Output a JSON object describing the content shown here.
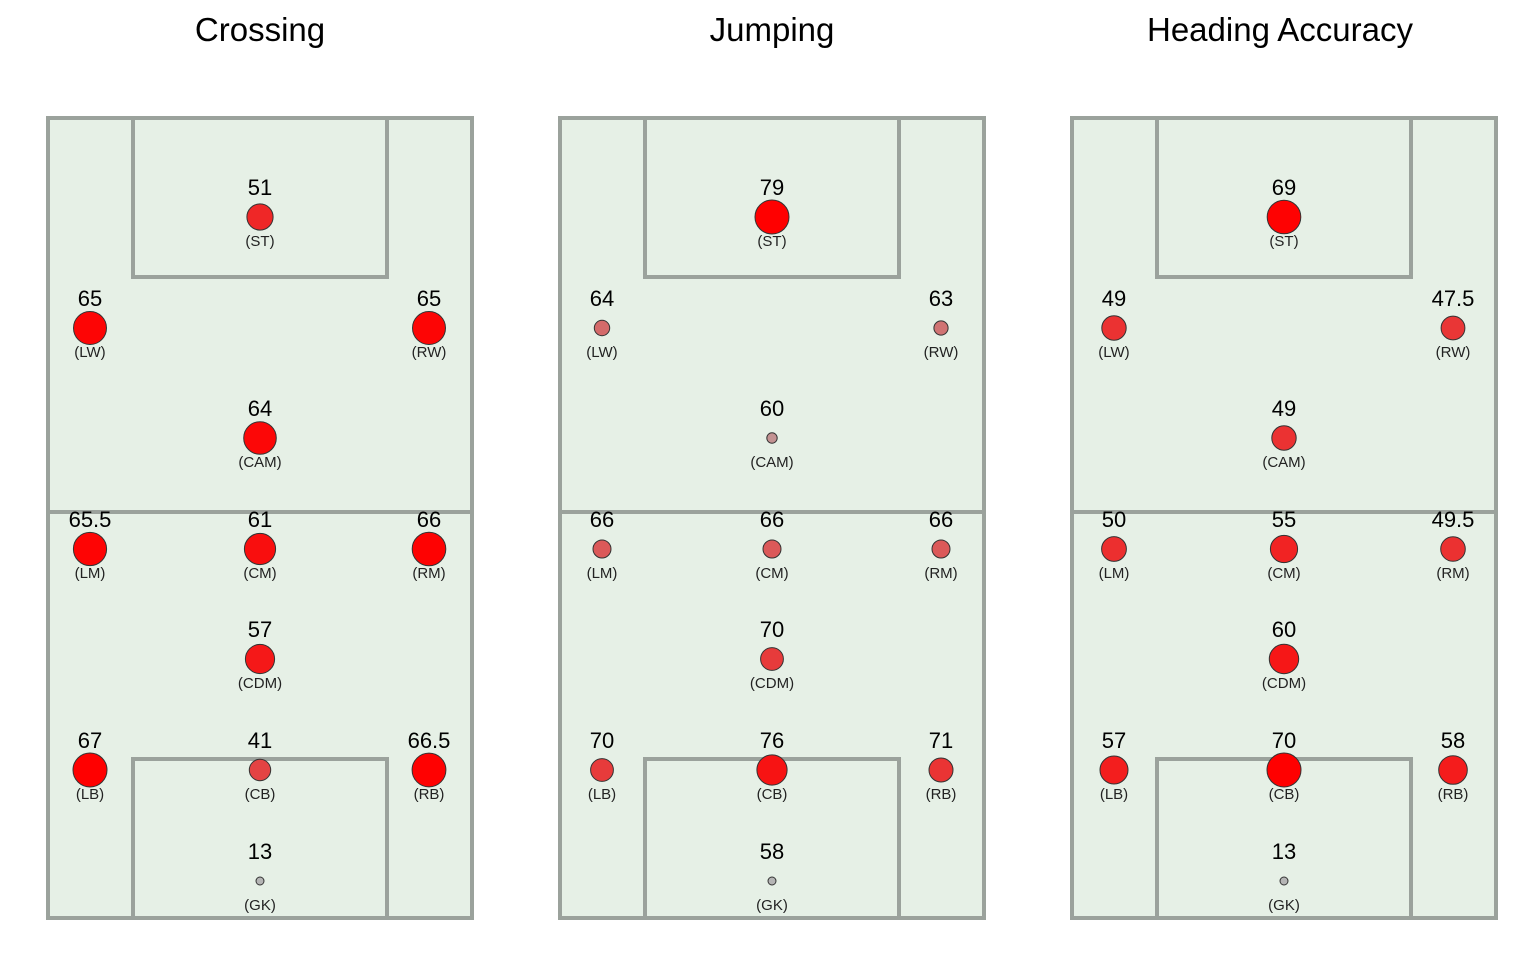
{
  "chart_data": [
    {
      "type": "scatter",
      "title": "Crossing",
      "positions": [
        "ST",
        "LW",
        "RW",
        "CAM",
        "LM",
        "CM",
        "RM",
        "CDM",
        "LB",
        "CB",
        "RB",
        "GK"
      ],
      "values": [
        51,
        65,
        65,
        64,
        65.5,
        61,
        66,
        57,
        67,
        41,
        66.5,
        13
      ],
      "value_labels": [
        "51",
        "65",
        "65",
        "64",
        "65.5",
        "61",
        "66",
        "57",
        "67",
        "41",
        "66.5",
        "13"
      ],
      "position_labels": [
        "(ST)",
        "(LW)",
        "(RW)",
        "(CAM)",
        "(LM)",
        "(CM)",
        "(RM)",
        "(CDM)",
        "(LB)",
        "(CB)",
        "(RB)",
        "(GK)"
      ],
      "color_range": [
        13,
        67
      ],
      "low_color": "#b5b5b5",
      "high_color": "#ff0000"
    },
    {
      "type": "scatter",
      "title": "Jumping",
      "positions": [
        "ST",
        "LW",
        "RW",
        "CAM",
        "LM",
        "CM",
        "RM",
        "CDM",
        "LB",
        "CB",
        "RB",
        "GK"
      ],
      "values": [
        79,
        64,
        63,
        60,
        66,
        66,
        66,
        70,
        70,
        76,
        71,
        58
      ],
      "value_labels": [
        "79",
        "64",
        "63",
        "60",
        "66",
        "66",
        "66",
        "70",
        "70",
        "76",
        "71",
        "58"
      ],
      "position_labels": [
        "(ST)",
        "(LW)",
        "(RW)",
        "(CAM)",
        "(LM)",
        "(CM)",
        "(RM)",
        "(CDM)",
        "(LB)",
        "(CB)",
        "(RB)",
        "(GK)"
      ],
      "color_range": [
        58,
        79
      ],
      "low_color": "#b5b5b5",
      "high_color": "#ff0000"
    },
    {
      "type": "scatter",
      "title": "Heading Accuracy",
      "positions": [
        "ST",
        "LW",
        "RW",
        "CAM",
        "LM",
        "CM",
        "RM",
        "CDM",
        "LB",
        "CB",
        "RB",
        "GK"
      ],
      "values": [
        69,
        49,
        47.5,
        49,
        50,
        55,
        49.5,
        60,
        57,
        70,
        58,
        13
      ],
      "value_labels": [
        "69",
        "49",
        "47.5",
        "49",
        "50",
        "55",
        "49.5",
        "60",
        "57",
        "70",
        "58",
        "13"
      ],
      "position_labels": [
        "(ST)",
        "(LW)",
        "(RW)",
        "(CAM)",
        "(LM)",
        "(CM)",
        "(RM)",
        "(CDM)",
        "(LB)",
        "(CB)",
        "(RB)",
        "(GK)"
      ],
      "color_range": [
        13,
        70
      ],
      "low_color": "#b5b5b5",
      "high_color": "#ff0000"
    }
  ]
}
